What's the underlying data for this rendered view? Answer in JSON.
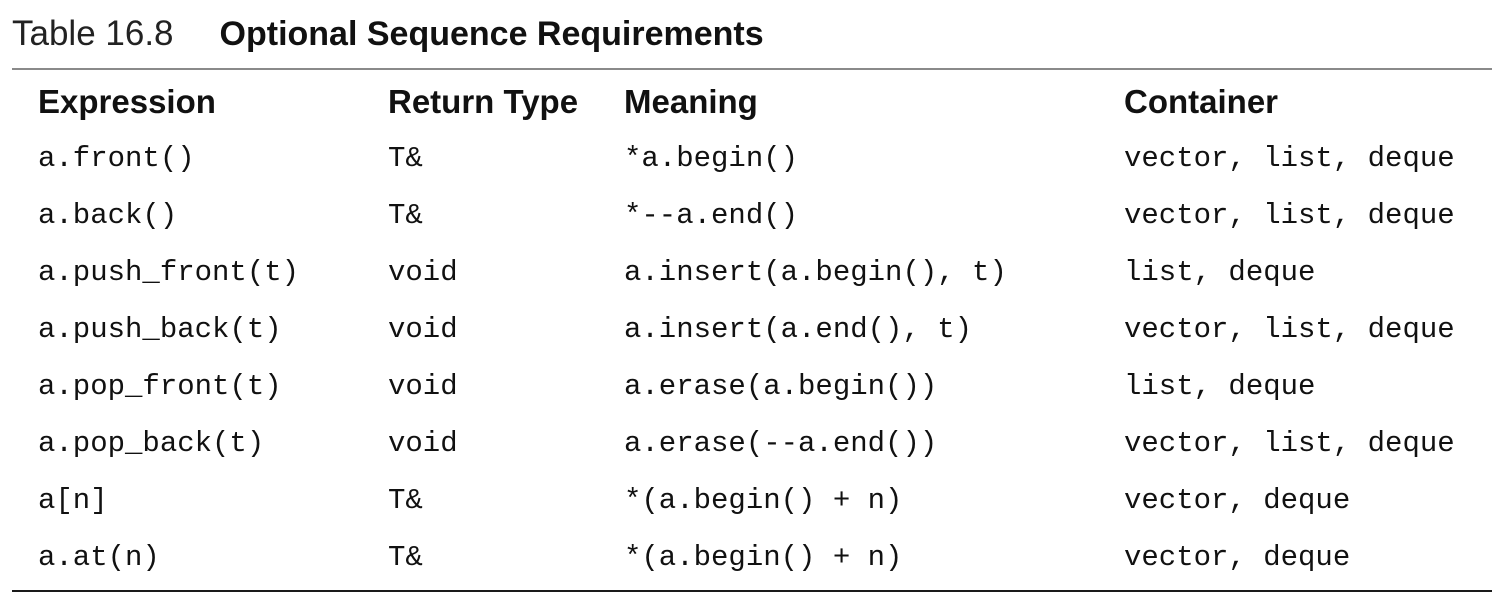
{
  "caption": {
    "label": "Table 16.8",
    "title": "Optional Sequence Requirements"
  },
  "table": {
    "headers": {
      "expression": "Expression",
      "return_type": "Return Type",
      "meaning": "Meaning",
      "container": "Container"
    },
    "rows": [
      {
        "expression": "a.front()",
        "return_type": "T&",
        "meaning": "*a.begin()",
        "container": "vector, list, deque"
      },
      {
        "expression": "a.back()",
        "return_type": "T&",
        "meaning": "*--a.end()",
        "container": "vector, list, deque"
      },
      {
        "expression": "a.push_front(t)",
        "return_type": "void",
        "meaning": "a.insert(a.begin(), t)",
        "container": "list, deque"
      },
      {
        "expression": "a.push_back(t)",
        "return_type": "void",
        "meaning": "a.insert(a.end(), t)",
        "container": "vector, list, deque"
      },
      {
        "expression": "a.pop_front(t)",
        "return_type": "void",
        "meaning": "a.erase(a.begin())",
        "container": "list, deque"
      },
      {
        "expression": "a.pop_back(t)",
        "return_type": "void",
        "meaning": "a.erase(--a.end())",
        "container": "vector, list, deque"
      },
      {
        "expression": "a[n]",
        "return_type": "T&",
        "meaning": "*(a.begin() + n)",
        "container": "vector, deque"
      },
      {
        "expression": "a.at(n)",
        "return_type": "T&",
        "meaning": "*(a.begin() + n)",
        "container": "vector, deque"
      }
    ]
  }
}
